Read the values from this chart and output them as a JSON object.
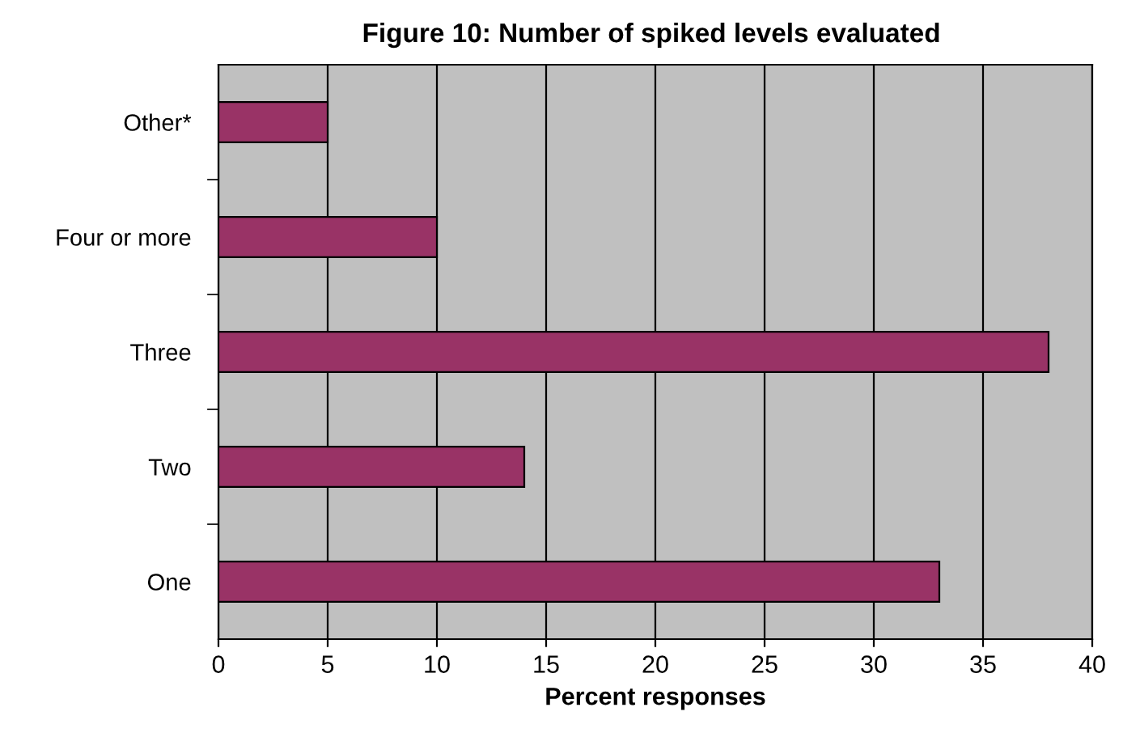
{
  "chart_data": {
    "type": "bar",
    "orientation": "horizontal",
    "title": "Figure 10: Number of spiked levels evaluated",
    "xlabel": "Percent responses",
    "categories": [
      "Other*",
      "Four or more",
      "Three",
      "Two",
      "One"
    ],
    "values": [
      5,
      10,
      38,
      14,
      33
    ],
    "color": "#993366",
    "xlim": [
      0,
      40
    ],
    "xticks": [
      0,
      5,
      10,
      15,
      20,
      25,
      30,
      35,
      40
    ],
    "grid": "x"
  }
}
